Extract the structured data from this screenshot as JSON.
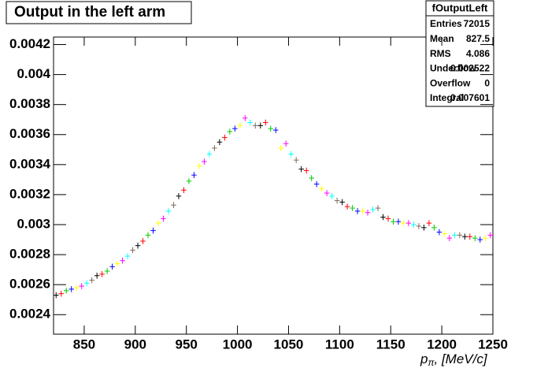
{
  "chart_data": {
    "type": "errorpoints",
    "title": "Output in the left arm",
    "xlabel": {
      "symbol": "p",
      "subscript": "π",
      "unit": ", [MeV/c]"
    },
    "xlim": [
      820,
      1250
    ],
    "xticks": [
      850,
      900,
      950,
      1000,
      1050,
      1100,
      1150,
      1200,
      1250
    ],
    "ylim": [
      0.00227,
      0.00425
    ],
    "yticks": [
      0.0024,
      0.0026,
      0.0028,
      0.003,
      0.0032,
      0.0034,
      0.0036,
      0.0038,
      0.004,
      0.0042
    ],
    "error": 2e-05,
    "colors": [
      "#000000",
      "#ff0000",
      "#00cc00",
      "#0000ff",
      "#ffff00",
      "#ff00ff",
      "#00ffff",
      "#7f6a5a"
    ],
    "series": [
      {
        "x": [
          822.5,
          827.5,
          832.5,
          837.5,
          842.5,
          847.5,
          852.5,
          857.5,
          862.5,
          867.5,
          872.5,
          877.5,
          882.5,
          887.5,
          892.5,
          897.5,
          902.5,
          907.5,
          912.5,
          917.5,
          922.5,
          927.5,
          932.5,
          937.5,
          942.5,
          947.5,
          952.5,
          957.5,
          962.5,
          967.5,
          972.5,
          977.5,
          982.5,
          987.5,
          992.5,
          997.5,
          1002.5,
          1007.5,
          1012.5,
          1017.5,
          1022.5,
          1027.5,
          1032.5,
          1037.5,
          1042.5,
          1047.5,
          1052.5,
          1057.5,
          1062.5,
          1067.5,
          1072.5,
          1077.5,
          1082.5,
          1087.5,
          1092.5,
          1097.5,
          1102.5,
          1107.5,
          1112.5,
          1117.5,
          1122.5,
          1127.5,
          1132.5,
          1137.5,
          1142.5,
          1147.5,
          1152.5,
          1157.5,
          1162.5,
          1167.5,
          1172.5,
          1177.5,
          1182.5,
          1187.5,
          1192.5,
          1197.5,
          1202.5,
          1207.5,
          1212.5,
          1217.5,
          1222.5,
          1227.5,
          1232.5,
          1237.5,
          1242.5,
          1247.5
        ],
        "values": [
          0.00253,
          0.00254,
          0.00256,
          0.00257,
          0.00258,
          0.00259,
          0.00261,
          0.00263,
          0.00266,
          0.00267,
          0.00269,
          0.00272,
          0.00274,
          0.00276,
          0.00279,
          0.00283,
          0.00286,
          0.00289,
          0.00293,
          0.00296,
          0.00301,
          0.00304,
          0.00309,
          0.00313,
          0.00319,
          0.00323,
          0.00329,
          0.00333,
          0.00339,
          0.00342,
          0.00347,
          0.00351,
          0.00355,
          0.00358,
          0.00362,
          0.00364,
          0.00366,
          0.00371,
          0.00368,
          0.00366,
          0.00366,
          0.00368,
          0.00364,
          0.00363,
          0.00351,
          0.00354,
          0.00347,
          0.00343,
          0.00337,
          0.00336,
          0.00331,
          0.00327,
          0.00324,
          0.00321,
          0.00319,
          0.00316,
          0.00315,
          0.00312,
          0.00311,
          0.00309,
          0.00309,
          0.00308,
          0.0031,
          0.00311,
          0.00305,
          0.00304,
          0.00302,
          0.00302,
          0.00301,
          0.00301,
          0.003,
          0.00299,
          0.00298,
          0.00301,
          0.00298,
          0.00295,
          0.00294,
          0.00291,
          0.00293,
          0.00293,
          0.00292,
          0.00292,
          0.00291,
          0.0029,
          0.00291,
          0.00293
        ]
      }
    ],
    "stats": {
      "name": "fOutputLeft",
      "rows": [
        [
          "Entries",
          "72015"
        ],
        [
          "Mean",
          "827.5"
        ],
        [
          "RMS",
          "4.086"
        ],
        [
          "Underflow",
          "0.002522"
        ],
        [
          "Overflow",
          "0"
        ],
        [
          "Integral",
          "0.007601"
        ]
      ]
    }
  }
}
